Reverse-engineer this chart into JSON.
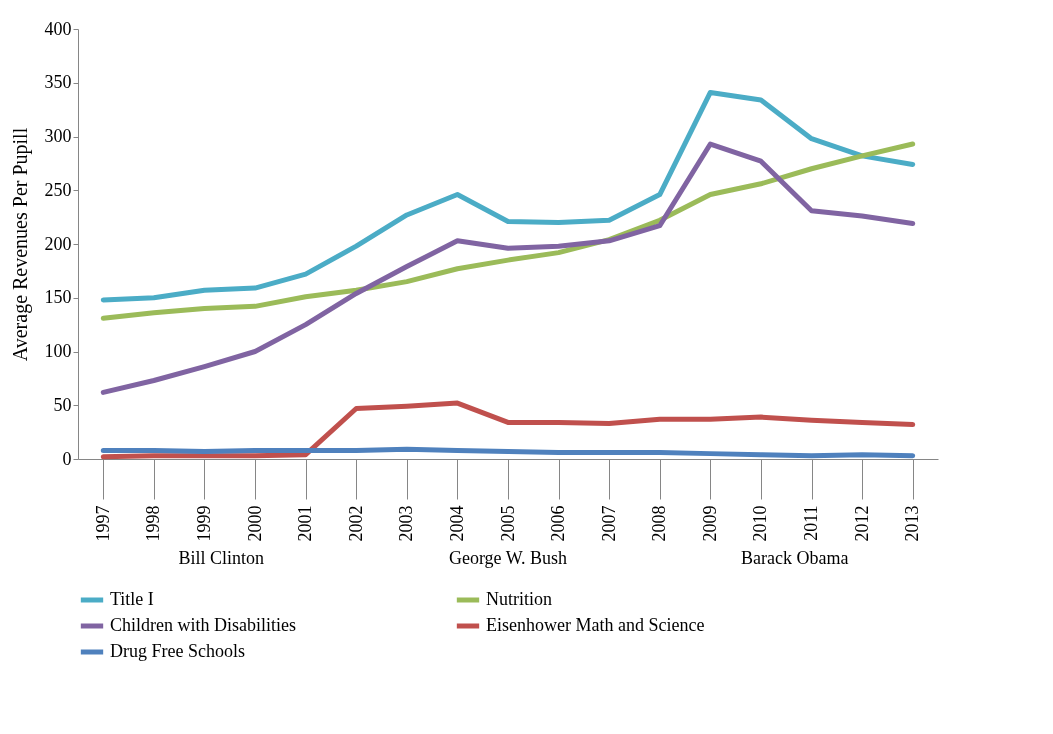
{
  "chart_data": {
    "type": "line",
    "ylabel": "Average Revenues Per Pupill",
    "categories": [
      "1997",
      "1998",
      "1999",
      "2000",
      "2001",
      "2002",
      "2003",
      "2004",
      "2005",
      "2006",
      "2007",
      "2008",
      "2009",
      "2010",
      "2011",
      "2012",
      "2013"
    ],
    "ylim": [
      0,
      400
    ],
    "yticks": [
      0,
      50,
      100,
      150,
      200,
      250,
      300,
      350,
      400
    ],
    "grid": false,
    "legend": "bottom",
    "marker": "none",
    "line_style": "solid",
    "series": [
      {
        "name": "Title I",
        "color": "#4bacc6",
        "values": [
          148,
          150,
          157,
          159,
          172,
          198,
          227,
          246,
          221,
          220,
          222,
          246,
          341,
          334,
          298,
          282,
          274
        ]
      },
      {
        "name": "Nutrition",
        "color": "#9bbb59",
        "values": [
          131,
          136,
          140,
          142,
          151,
          157,
          165,
          177,
          185,
          192,
          204,
          222,
          246,
          256,
          270,
          282,
          293
        ]
      },
      {
        "name": "Children with Disabilities",
        "color": "#8064a2",
        "values": [
          62,
          73,
          86,
          100,
          125,
          154,
          179,
          203,
          196,
          198,
          203,
          217,
          293,
          277,
          231,
          226,
          219
        ]
      },
      {
        "name": "Eisenhower Math and Science",
        "color": "#c0504d",
        "values": [
          2,
          3,
          3,
          3,
          4,
          47,
          49,
          52,
          34,
          34,
          33,
          37,
          37,
          39,
          36,
          34,
          32
        ]
      },
      {
        "name": "Drug Free Schools",
        "color": "#4f81bd",
        "values": [
          8,
          8,
          7,
          8,
          8,
          8,
          9,
          8,
          7,
          6,
          6,
          6,
          5,
          4,
          3,
          4,
          3
        ]
      }
    ],
    "annotations": [
      "Bill Clinton",
      "George W. Bush",
      "Barack Obama"
    ]
  }
}
